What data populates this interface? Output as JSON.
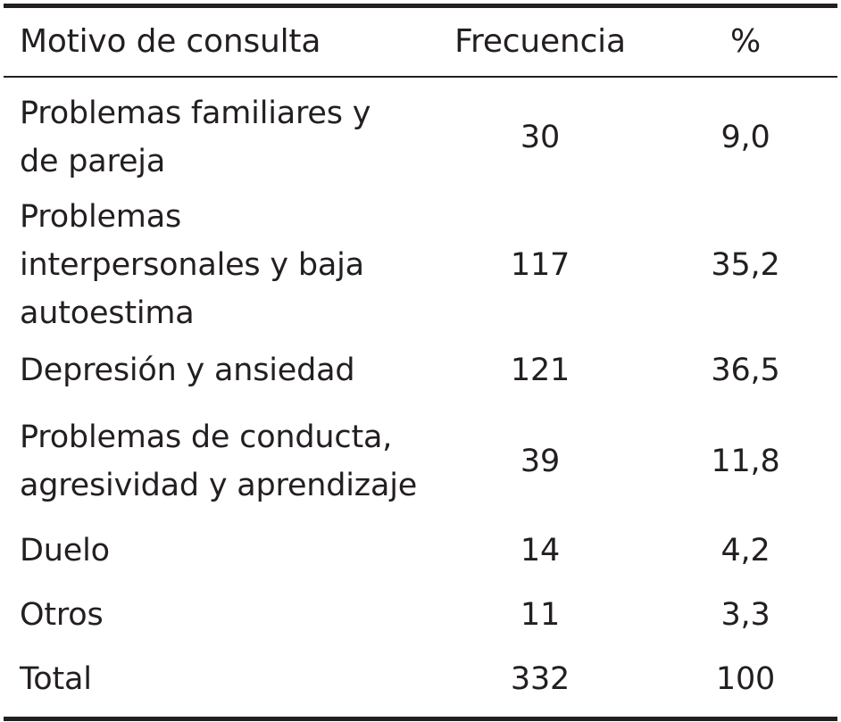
{
  "header": {
    "col_motivo": "Motivo de consulta",
    "col_frecuencia": "Frecuencia",
    "col_pct": "%"
  },
  "rows": [
    {
      "motivo": "Problemas familiares y de pareja",
      "frecuencia": "30",
      "pct": "9,0"
    },
    {
      "motivo": "Problemas interpersonales y baja autoestima",
      "frecuencia": "117",
      "pct": "35,2"
    },
    {
      "motivo": "Depresión y ansiedad",
      "frecuencia": "121",
      "pct": "36,5"
    },
    {
      "motivo": "Problemas de conducta, agresividad y aprendizaje",
      "frecuencia": "39",
      "pct": "11,8"
    },
    {
      "motivo": "Duelo",
      "frecuencia": "14",
      "pct": "4,2"
    },
    {
      "motivo": "Otros",
      "frecuencia": "11",
      "pct": "3,3"
    }
  ],
  "total": {
    "motivo": "Total",
    "frecuencia": "332",
    "pct": "100"
  }
}
